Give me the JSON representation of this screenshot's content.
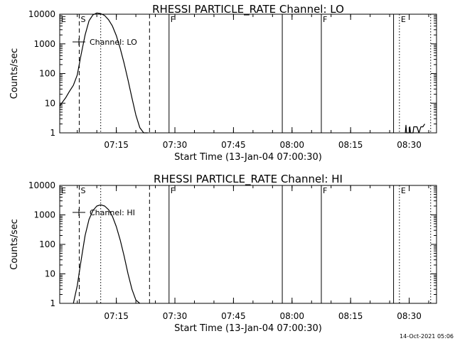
{
  "chart_data": [
    {
      "type": "line",
      "title": "RHESSI PARTICLE_RATE Channel: LO",
      "xlabel": "Start Time (13-Jan-04 07:00:30)",
      "ylabel": "Counts/sec",
      "yscale": "log",
      "ylim": [
        1,
        10000
      ],
      "xlim": [
        "07:00:30",
        "08:37:00"
      ],
      "x_ticks": [
        "07:15",
        "07:30",
        "07:45",
        "08:00",
        "08:15",
        "08:30"
      ],
      "y_ticks": [
        "1",
        "10",
        "100",
        "1000",
        "10000"
      ],
      "legend": {
        "entries": [
          "Channel: LO"
        ],
        "position": "top-left"
      },
      "grid": false,
      "markers": [
        {
          "label": "E",
          "time": "07:00:30",
          "style": "none"
        },
        {
          "label": "S",
          "time": "07:05:30",
          "style": "dashed"
        },
        {
          "label": "",
          "time": "07:11:00",
          "style": "dotted"
        },
        {
          "label": "",
          "time": "07:23:30",
          "style": "dashed"
        },
        {
          "label": "F",
          "time": "07:28:30",
          "style": "solid"
        },
        {
          "label": "",
          "time": "07:57:30",
          "style": "solid"
        },
        {
          "label": "F",
          "time": "08:07:30",
          "style": "solid"
        },
        {
          "label": "",
          "time": "08:26:00",
          "style": "solid"
        },
        {
          "label": "E",
          "time": "08:27:30",
          "style": "dotted"
        },
        {
          "label": "",
          "time": "08:35:30",
          "style": "dotted"
        }
      ],
      "series": [
        {
          "x": [
            "07:00:30",
            "07:01:00",
            "07:02:00",
            "07:03:00",
            "07:04:00",
            "07:05:00",
            "07:06:00",
            "07:07:00",
            "07:08:00",
            "07:09:00",
            "07:10:00",
            "07:11:00",
            "07:12:00",
            "07:13:00",
            "07:14:00",
            "07:15:00",
            "07:16:00",
            "07:17:00",
            "07:18:00",
            "07:19:00",
            "07:20:00",
            "07:21:00",
            "07:22:00",
            "07:23:00"
          ],
          "values": [
            8,
            10,
            15,
            25,
            40,
            90,
            450,
            2000,
            6000,
            9500,
            11000,
            10500,
            9000,
            6500,
            4000,
            1900,
            700,
            220,
            60,
            15,
            4,
            1.5,
            1,
            1
          ]
        },
        {
          "x": [
            "08:29:00",
            "08:29:10",
            "08:29:20",
            "08:30:00",
            "08:30:10",
            "08:30:20",
            "08:31:00",
            "08:31:10",
            "08:31:20",
            "08:32:00",
            "08:32:30",
            "08:33:00",
            "08:33:30",
            "08:34:00"
          ],
          "values": [
            1,
            1.8,
            1,
            1,
            1.6,
            1,
            1,
            1.6,
            1.6,
            1.6,
            1,
            1.6,
            1.6,
            2
          ]
        }
      ]
    },
    {
      "type": "line",
      "title": "RHESSI PARTICLE_RATE Channel: HI",
      "xlabel": "Start Time (13-Jan-04 07:00:30)",
      "ylabel": "Counts/sec",
      "yscale": "log",
      "ylim": [
        1,
        10000
      ],
      "xlim": [
        "07:00:30",
        "08:37:00"
      ],
      "x_ticks": [
        "07:15",
        "07:30",
        "07:45",
        "08:00",
        "08:15",
        "08:30"
      ],
      "y_ticks": [
        "1",
        "10",
        "100",
        "1000",
        "10000"
      ],
      "legend": {
        "entries": [
          "Channel: HI"
        ],
        "position": "top-left"
      },
      "grid": false,
      "markers": [
        {
          "label": "E",
          "time": "07:00:30",
          "style": "none"
        },
        {
          "label": "S",
          "time": "07:05:30",
          "style": "dashed"
        },
        {
          "label": "",
          "time": "07:11:00",
          "style": "dotted"
        },
        {
          "label": "",
          "time": "07:23:30",
          "style": "dashed"
        },
        {
          "label": "F",
          "time": "07:28:30",
          "style": "solid"
        },
        {
          "label": "",
          "time": "07:57:30",
          "style": "solid"
        },
        {
          "label": "F",
          "time": "08:07:30",
          "style": "solid"
        },
        {
          "label": "",
          "time": "08:26:00",
          "style": "solid"
        },
        {
          "label": "E",
          "time": "08:27:30",
          "style": "dotted"
        },
        {
          "label": "",
          "time": "08:35:30",
          "style": "dotted"
        }
      ],
      "series": [
        {
          "x": [
            "07:04:00",
            "07:05:00",
            "07:06:00",
            "07:07:00",
            "07:08:00",
            "07:09:00",
            "07:10:00",
            "07:11:00",
            "07:12:00",
            "07:13:00",
            "07:14:00",
            "07:15:00",
            "07:16:00",
            "07:17:00",
            "07:18:00",
            "07:19:00",
            "07:20:00",
            "07:21:00"
          ],
          "values": [
            1,
            4,
            30,
            200,
            700,
            1400,
            2000,
            2200,
            2000,
            1500,
            900,
            400,
            140,
            40,
            10,
            3,
            1.3,
            1
          ]
        }
      ]
    }
  ],
  "footer": {
    "timestamp": "14-Oct-2021 05:06"
  }
}
